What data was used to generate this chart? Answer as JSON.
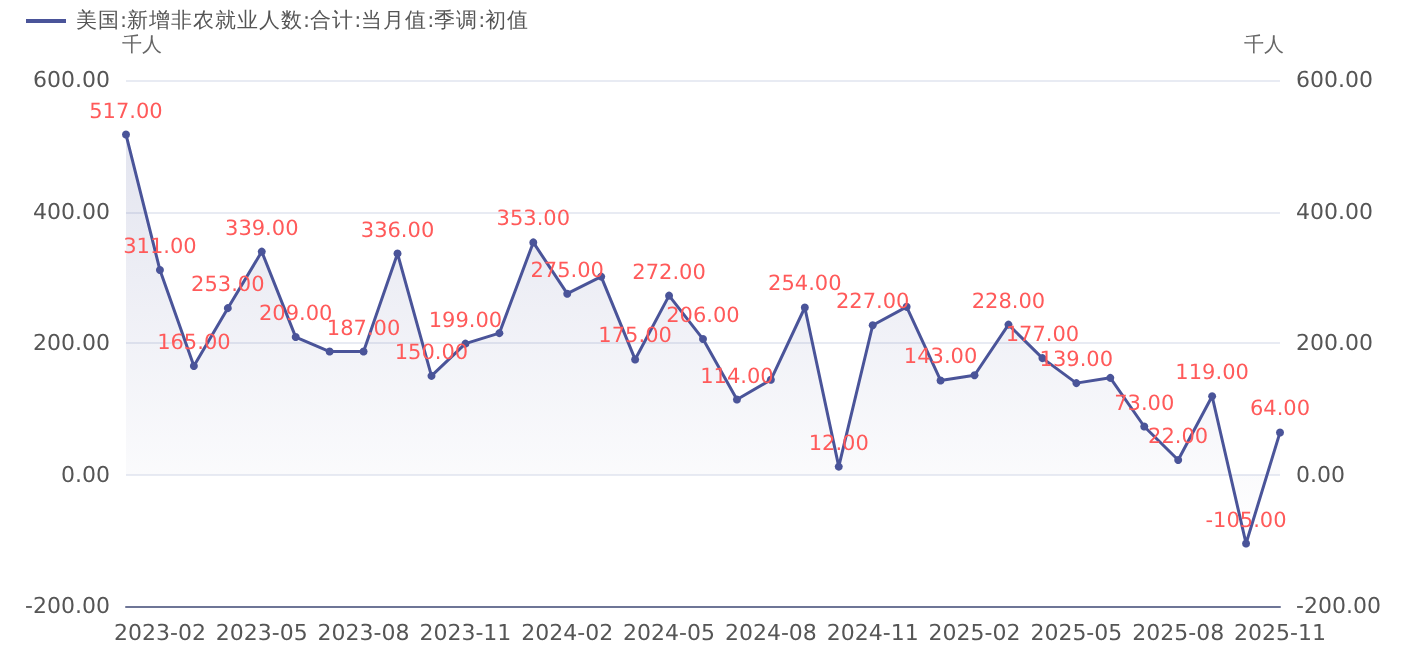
{
  "chart_data": {
    "type": "area",
    "categories": [
      null,
      "2023-02",
      null,
      null,
      "2023-05",
      null,
      null,
      "2023-08",
      null,
      null,
      "2023-11",
      null,
      null,
      "2024-02",
      null,
      null,
      "2024-05",
      null,
      null,
      "2024-08",
      null,
      null,
      "2024-11",
      null,
      null,
      "2025-02",
      null,
      null,
      "2025-05",
      null,
      null,
      "2025-08",
      null,
      null,
      "2025-11"
    ],
    "series": [
      {
        "name": "美国:新增非农就业人数:合计:当月值:季调:初值",
        "color": "#4a5499",
        "values": [
          517,
          311,
          165,
          253,
          339,
          209,
          187,
          187,
          336,
          150,
          199,
          215,
          353,
          275,
          301,
          175,
          272,
          206,
          114,
          144,
          254,
          12,
          227,
          255,
          143,
          151,
          228,
          177,
          139,
          147,
          73,
          22,
          119,
          -105,
          64
        ],
        "value_labels": [
          "517.00",
          "311.00",
          "165.00",
          "253.00",
          "339.00",
          "209.00",
          null,
          "187.00",
          "336.00",
          "150.00",
          "199.00",
          null,
          "353.00",
          "275.00",
          null,
          "175.00",
          "272.00",
          "206.00",
          "114.00",
          null,
          "254.00",
          "12.00",
          "227.00",
          null,
          "143.00",
          null,
          "228.00",
          "177.00",
          "139.00",
          null,
          "73.00",
          "22.00",
          "119.00",
          "-105.00",
          "64.00"
        ]
      }
    ],
    "ylabel": "千人",
    "y2label": "千人",
    "ylim": [
      -200,
      600
    ],
    "yticks": [
      {
        "value": -200,
        "label": "-200.00"
      },
      {
        "value": 0,
        "label": "0.00"
      },
      {
        "value": 200,
        "label": "200.00"
      },
      {
        "value": 400,
        "label": "400.00"
      },
      {
        "value": 600,
        "label": "600.00"
      }
    ],
    "y2lim": [
      -200,
      600
    ],
    "y2ticks": [
      {
        "value": -200,
        "label": "-200.00"
      },
      {
        "value": 0,
        "label": "0.00"
      },
      {
        "value": 200,
        "label": "200.00"
      },
      {
        "value": 400,
        "label": "400.00"
      },
      {
        "value": 600,
        "label": "600.00"
      }
    ],
    "grid": "y",
    "legend": "top left",
    "marker": "circle",
    "line_style": "solid"
  }
}
